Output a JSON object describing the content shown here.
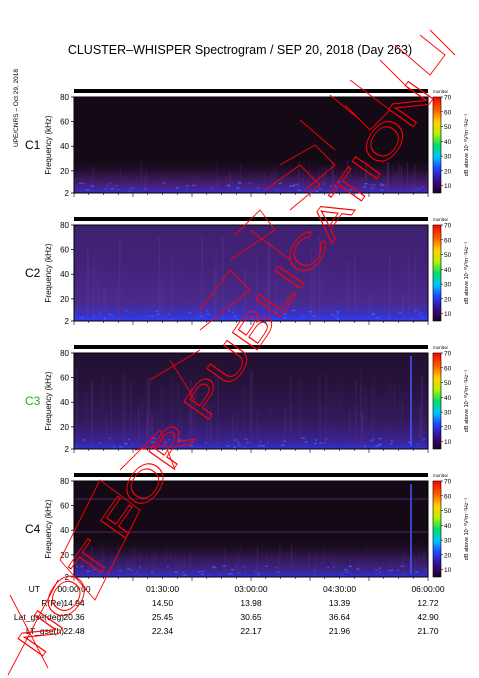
{
  "title": "CLUSTER–WHISPER Spectrogram / SEP 20, 2018 (Day 263)",
  "side_label": "UPE/CNRS – Oct 29, 2018",
  "watermark": "NOT FOR PUBLICATION",
  "colors": {
    "background_dark": "#140a16",
    "emission_purple": "#5b2a86",
    "emission_blue": "#2233ff",
    "spacecraft_label_highlight": "#22aa22"
  },
  "chart_data": {
    "type": "heatmap",
    "panels": [
      {
        "spacecraft": "C1",
        "ylabel": "Frequency (kHz)",
        "yticks": [
          "2",
          "20",
          "40",
          "60",
          "80"
        ],
        "ylim": [
          2,
          80
        ],
        "colorbar_label": "dB above 10⁻⁸V²m⁻²Hz⁻¹",
        "colorbar_ticks": [
          "10",
          "20",
          "30",
          "40",
          "50",
          "60",
          "70"
        ],
        "corner_tag": "monitor"
      },
      {
        "spacecraft": "C2",
        "ylabel": "Frequency (kHz)",
        "yticks": [
          "2",
          "20",
          "40",
          "60",
          "80"
        ],
        "ylim": [
          2,
          80
        ],
        "colorbar_label": "dB above 10⁻⁸V²m⁻²Hz⁻¹",
        "colorbar_ticks": [
          "10",
          "20",
          "30",
          "40",
          "50",
          "60",
          "70"
        ],
        "corner_tag": "monitor"
      },
      {
        "spacecraft": "C3",
        "ylabel": "Frequency (kHz)",
        "yticks": [
          "2",
          "20",
          "40",
          "60",
          "80"
        ],
        "ylim": [
          2,
          80
        ],
        "colorbar_label": "dB above 10⁻⁸V²m⁻²Hz⁻¹",
        "colorbar_ticks": [
          "10",
          "20",
          "30",
          "40",
          "50",
          "60",
          "70"
        ],
        "corner_tag": "monitor"
      },
      {
        "spacecraft": "C4",
        "ylabel": "Frequency (kHz)",
        "yticks": [
          "2",
          "20",
          "40",
          "60",
          "80"
        ],
        "ylim": [
          2,
          80
        ],
        "colorbar_label": "dB above 10⁻⁸V²m⁻²Hz⁻¹",
        "colorbar_ticks": [
          "10",
          "20",
          "30",
          "40",
          "50",
          "60",
          "70"
        ],
        "corner_tag": "monitor"
      }
    ],
    "colorbar_range": [
      5,
      70
    ],
    "xlim_hours": [
      0,
      6
    ],
    "ephemeris": [
      {
        "label": "UT",
        "values": [
          "00:00:00",
          "01:30:00",
          "03:00:00",
          "04:30:00",
          "06:00:00"
        ]
      },
      {
        "label": "R(Re)",
        "values": [
          "14.94",
          "14.50",
          "13.98",
          "13.39",
          "12.72"
        ]
      },
      {
        "label": "Lat_gse(deg)",
        "values": [
          "20.36",
          "25.45",
          "30.65",
          "36.64",
          "42.90"
        ]
      },
      {
        "label": "LT_gse(h)",
        "values": [
          "22.48",
          "22.34",
          "22.17",
          "21.96",
          "21.70"
        ]
      }
    ]
  }
}
